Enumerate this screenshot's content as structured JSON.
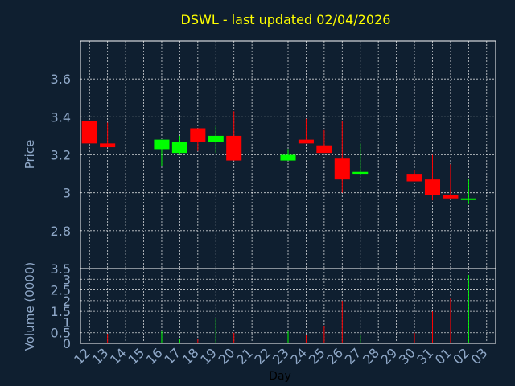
{
  "chart_data": {
    "type": "candlestick",
    "title": "DSWL - last updated 02/04/2026",
    "xlabel": "Day",
    "price_label": "Price",
    "volume_label": "Volume (0000)",
    "price_ylim": [
      2.6,
      3.8
    ],
    "volume_ylim": [
      0,
      3.5
    ],
    "price_ticks": [
      {
        "value": 2.8,
        "label": "2.8"
      },
      {
        "value": 3.0,
        "label": "3"
      },
      {
        "value": 3.2,
        "label": "3.2"
      },
      {
        "value": 3.4,
        "label": "3.4"
      },
      {
        "value": 3.6,
        "label": "3.6"
      }
    ],
    "volume_ticks": [
      {
        "value": 0,
        "label": "0"
      },
      {
        "value": 0.5,
        "label": "0.5"
      },
      {
        "value": 1,
        "label": "1"
      },
      {
        "value": 1.5,
        "label": "1.5"
      },
      {
        "value": 2,
        "label": "2"
      },
      {
        "value": 2.5,
        "label": "2.5"
      },
      {
        "value": 3,
        "label": "3"
      },
      {
        "value": 3.5,
        "label": "3.5"
      }
    ],
    "x_ticks": [
      "12",
      "13",
      "14",
      "15",
      "16",
      "17",
      "18",
      "19",
      "20",
      "21",
      "22",
      "23",
      "24",
      "25",
      "26",
      "27",
      "28",
      "29",
      "30",
      "31",
      "01",
      "02",
      "03"
    ],
    "grid": true,
    "colors": {
      "background": "#0f1f30",
      "up": "#00ff00",
      "down": "#ff0000",
      "title": "#ffff00",
      "axis_text": "#8fa8c8",
      "grid": "#ffffff"
    },
    "candles": [
      {
        "day": "12",
        "open": 3.38,
        "close": 3.26,
        "high": 3.38,
        "low": 3.26
      },
      {
        "day": "13",
        "open": 3.26,
        "close": 3.24,
        "high": 3.37,
        "low": 3.24
      },
      {
        "day": "16",
        "open": 3.23,
        "close": 3.28,
        "high": 3.28,
        "low": 3.14
      },
      {
        "day": "17",
        "open": 3.21,
        "close": 3.27,
        "high": 3.3,
        "low": 3.2
      },
      {
        "day": "18",
        "open": 3.34,
        "close": 3.27,
        "high": 3.34,
        "low": 3.22
      },
      {
        "day": "19",
        "open": 3.27,
        "close": 3.3,
        "high": 3.35,
        "low": 3.21
      },
      {
        "day": "20",
        "open": 3.3,
        "close": 3.17,
        "high": 3.43,
        "low": 3.17
      },
      {
        "day": "23",
        "open": 3.17,
        "close": 3.2,
        "high": 3.23,
        "low": 3.17
      },
      {
        "day": "24",
        "open": 3.28,
        "close": 3.26,
        "high": 3.39,
        "low": 3.26
      },
      {
        "day": "25",
        "open": 3.25,
        "close": 3.21,
        "high": 3.33,
        "low": 3.21
      },
      {
        "day": "26",
        "open": 3.18,
        "close": 3.07,
        "high": 3.38,
        "low": 3.0
      },
      {
        "day": "27",
        "open": 3.1,
        "close": 3.11,
        "high": 3.26,
        "low": 3.09
      },
      {
        "day": "30",
        "open": 3.1,
        "close": 3.06,
        "high": 3.12,
        "low": 3.06
      },
      {
        "day": "31",
        "open": 3.07,
        "close": 2.99,
        "high": 3.2,
        "low": 2.96
      },
      {
        "day": "01",
        "open": 2.99,
        "close": 2.97,
        "high": 3.15,
        "low": 2.97
      },
      {
        "day": "02",
        "open": 2.97,
        "close": 2.97,
        "high": 3.07,
        "low": 2.94
      }
    ],
    "volume": [
      {
        "day": "12",
        "value": 0.0,
        "direction": "down"
      },
      {
        "day": "13",
        "value": 0.45,
        "direction": "down"
      },
      {
        "day": "16",
        "value": 0.6,
        "direction": "up"
      },
      {
        "day": "17",
        "value": 0.2,
        "direction": "up"
      },
      {
        "day": "18",
        "value": 0.2,
        "direction": "down"
      },
      {
        "day": "19",
        "value": 1.2,
        "direction": "up"
      },
      {
        "day": "20",
        "value": 0.5,
        "direction": "down"
      },
      {
        "day": "23",
        "value": 0.6,
        "direction": "up"
      },
      {
        "day": "24",
        "value": 0.4,
        "direction": "down"
      },
      {
        "day": "25",
        "value": 0.8,
        "direction": "down"
      },
      {
        "day": "26",
        "value": 2.0,
        "direction": "down"
      },
      {
        "day": "27",
        "value": 0.4,
        "direction": "up"
      },
      {
        "day": "30",
        "value": 0.5,
        "direction": "down"
      },
      {
        "day": "31",
        "value": 1.5,
        "direction": "down"
      },
      {
        "day": "01",
        "value": 2.1,
        "direction": "down"
      },
      {
        "day": "02",
        "value": 3.2,
        "direction": "up"
      }
    ]
  }
}
